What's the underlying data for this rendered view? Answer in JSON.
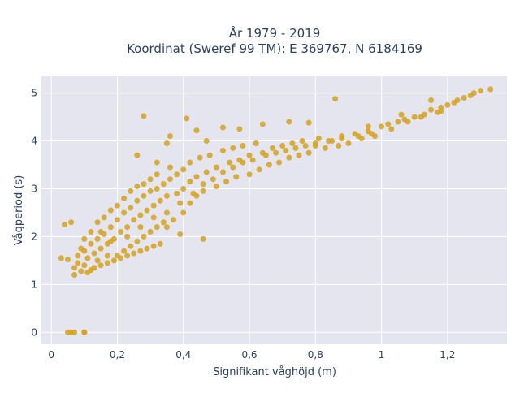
{
  "chart_data": {
    "type": "scatter",
    "title_line1": "År 1979 - 2019",
    "title_line2": "Koordinat (Sweref 99 TM): E 369767, N 6184169",
    "xlabel": "Signifikant våghöjd (m)",
    "ylabel": "Vågperiod (s)",
    "xlim": [
      -0.03,
      1.38
    ],
    "ylim": [
      -0.25,
      5.35
    ],
    "x_ticks": [
      {
        "value": 0,
        "label": "0"
      },
      {
        "value": 0.2,
        "label": "0,2"
      },
      {
        "value": 0.4,
        "label": "0,4"
      },
      {
        "value": 0.6,
        "label": "0,6"
      },
      {
        "value": 0.8,
        "label": "0,8"
      },
      {
        "value": 1.0,
        "label": "1"
      },
      {
        "value": 1.2,
        "label": "1,2"
      }
    ],
    "y_ticks": [
      {
        "value": 0,
        "label": "0"
      },
      {
        "value": 1,
        "label": "1"
      },
      {
        "value": 2,
        "label": "2"
      },
      {
        "value": 3,
        "label": "3"
      },
      {
        "value": 4,
        "label": "4"
      },
      {
        "value": 5,
        "label": "5"
      }
    ],
    "grid": true,
    "marker_color": "#d4a21f",
    "plot_bg_color": "#e5e5ef",
    "points": [
      [
        0.05,
        0.0
      ],
      [
        0.06,
        0.0
      ],
      [
        0.07,
        0.0
      ],
      [
        0.1,
        0.0
      ],
      [
        0.1,
        0.0
      ],
      [
        0.04,
        2.25
      ],
      [
        0.06,
        2.3
      ],
      [
        0.05,
        1.52
      ],
      [
        0.03,
        1.55
      ],
      [
        0.07,
        1.2
      ],
      [
        0.07,
        1.35
      ],
      [
        0.08,
        1.45
      ],
      [
        0.08,
        1.6
      ],
      [
        0.09,
        1.28
      ],
      [
        0.09,
        1.75
      ],
      [
        0.1,
        1.4
      ],
      [
        0.1,
        1.95
      ],
      [
        0.11,
        1.25
      ],
      [
        0.11,
        1.55
      ],
      [
        0.12,
        1.85
      ],
      [
        0.12,
        2.1
      ],
      [
        0.13,
        1.35
      ],
      [
        0.13,
        1.65
      ],
      [
        0.14,
        1.95
      ],
      [
        0.14,
        2.3
      ],
      [
        0.15,
        1.4
      ],
      [
        0.15,
        1.75
      ],
      [
        0.16,
        2.05
      ],
      [
        0.16,
        2.4
      ],
      [
        0.17,
        1.45
      ],
      [
        0.17,
        1.85
      ],
      [
        0.18,
        2.2
      ],
      [
        0.18,
        2.55
      ],
      [
        0.19,
        1.5
      ],
      [
        0.19,
        1.95
      ],
      [
        0.2,
        2.35
      ],
      [
        0.2,
        2.65
      ],
      [
        0.21,
        1.55
      ],
      [
        0.21,
        2.1
      ],
      [
        0.22,
        2.5
      ],
      [
        0.22,
        2.8
      ],
      [
        0.23,
        1.6
      ],
      [
        0.23,
        2.2
      ],
      [
        0.24,
        2.6
      ],
      [
        0.24,
        2.95
      ],
      [
        0.25,
        1.65
      ],
      [
        0.25,
        2.35
      ],
      [
        0.26,
        2.75
      ],
      [
        0.26,
        3.05
      ],
      [
        0.27,
        1.7
      ],
      [
        0.27,
        2.45
      ],
      [
        0.28,
        2.85
      ],
      [
        0.28,
        3.1
      ],
      [
        0.29,
        1.75
      ],
      [
        0.29,
        2.55
      ],
      [
        0.3,
        2.95
      ],
      [
        0.3,
        3.2
      ],
      [
        0.31,
        1.8
      ],
      [
        0.31,
        2.65
      ],
      [
        0.32,
        3.0
      ],
      [
        0.32,
        3.3
      ],
      [
        0.33,
        1.85
      ],
      [
        0.33,
        2.75
      ],
      [
        0.34,
        3.1
      ],
      [
        0.35,
        2.2
      ],
      [
        0.35,
        2.85
      ],
      [
        0.36,
        3.2
      ],
      [
        0.36,
        3.45
      ],
      [
        0.37,
        2.35
      ],
      [
        0.38,
        2.9
      ],
      [
        0.38,
        3.3
      ],
      [
        0.4,
        2.5
      ],
      [
        0.4,
        3.0
      ],
      [
        0.4,
        3.4
      ],
      [
        0.42,
        2.7
      ],
      [
        0.42,
        3.15
      ],
      [
        0.42,
        3.55
      ],
      [
        0.44,
        2.85
      ],
      [
        0.44,
        3.25
      ],
      [
        0.45,
        3.65
      ],
      [
        0.46,
        2.95
      ],
      [
        0.47,
        3.35
      ],
      [
        0.48,
        3.7
      ],
      [
        0.5,
        3.05
      ],
      [
        0.5,
        3.45
      ],
      [
        0.52,
        3.8
      ],
      [
        0.53,
        3.15
      ],
      [
        0.54,
        3.55
      ],
      [
        0.55,
        3.85
      ],
      [
        0.56,
        3.25
      ],
      [
        0.57,
        3.6
      ],
      [
        0.58,
        3.9
      ],
      [
        0.6,
        3.3
      ],
      [
        0.6,
        3.7
      ],
      [
        0.62,
        3.95
      ],
      [
        0.63,
        3.4
      ],
      [
        0.64,
        3.75
      ],
      [
        0.66,
        3.5
      ],
      [
        0.67,
        3.85
      ],
      [
        0.69,
        3.55
      ],
      [
        0.7,
        3.9
      ],
      [
        0.72,
        3.65
      ],
      [
        0.73,
        3.95
      ],
      [
        0.75,
        3.7
      ],
      [
        0.76,
        4.0
      ],
      [
        0.78,
        3.75
      ],
      [
        0.8,
        3.9
      ],
      [
        0.81,
        4.05
      ],
      [
        0.83,
        3.85
      ],
      [
        0.85,
        4.0
      ],
      [
        0.87,
        3.9
      ],
      [
        0.88,
        4.1
      ],
      [
        0.9,
        3.95
      ],
      [
        0.92,
        4.15
      ],
      [
        0.94,
        4.05
      ],
      [
        0.96,
        4.2
      ],
      [
        0.98,
        4.1
      ],
      [
        1.0,
        4.3
      ],
      [
        1.03,
        4.25
      ],
      [
        1.05,
        4.4
      ],
      [
        1.08,
        4.4
      ],
      [
        1.1,
        4.5
      ],
      [
        1.13,
        4.55
      ],
      [
        1.15,
        4.65
      ],
      [
        1.18,
        4.7
      ],
      [
        1.2,
        4.75
      ],
      [
        1.23,
        4.85
      ],
      [
        1.25,
        4.9
      ],
      [
        1.28,
        5.0
      ],
      [
        1.3,
        5.05
      ],
      [
        1.33,
        5.08
      ],
      [
        0.1,
        1.7
      ],
      [
        0.12,
        1.3
      ],
      [
        0.14,
        1.5
      ],
      [
        0.15,
        2.1
      ],
      [
        0.17,
        1.6
      ],
      [
        0.18,
        1.9
      ],
      [
        0.2,
        1.6
      ],
      [
        0.22,
        1.7
      ],
      [
        0.24,
        1.8
      ],
      [
        0.26,
        1.9
      ],
      [
        0.28,
        2.0
      ],
      [
        0.3,
        2.1
      ],
      [
        0.32,
        2.2
      ],
      [
        0.34,
        2.3
      ],
      [
        0.23,
        2.0
      ],
      [
        0.27,
        2.2
      ],
      [
        0.31,
        2.4
      ],
      [
        0.35,
        2.5
      ],
      [
        0.39,
        2.7
      ],
      [
        0.43,
        2.9
      ],
      [
        0.46,
        3.1
      ],
      [
        0.49,
        3.2
      ],
      [
        0.52,
        3.35
      ],
      [
        0.55,
        3.45
      ],
      [
        0.58,
        3.55
      ],
      [
        0.61,
        3.6
      ],
      [
        0.65,
        3.7
      ],
      [
        0.68,
        3.75
      ],
      [
        0.71,
        3.8
      ],
      [
        0.74,
        3.85
      ],
      [
        0.77,
        3.9
      ],
      [
        0.8,
        3.95
      ],
      [
        0.84,
        4.0
      ],
      [
        0.88,
        4.05
      ],
      [
        0.93,
        4.1
      ],
      [
        0.97,
        4.15
      ],
      [
        1.02,
        4.35
      ],
      [
        1.07,
        4.45
      ],
      [
        1.12,
        4.5
      ],
      [
        1.17,
        4.6
      ],
      [
        1.22,
        4.8
      ],
      [
        1.27,
        4.95
      ],
      [
        0.28,
        4.52
      ],
      [
        0.36,
        4.1
      ],
      [
        0.41,
        4.47
      ],
      [
        0.44,
        4.22
      ],
      [
        0.47,
        4.0
      ],
      [
        0.52,
        4.28
      ],
      [
        0.57,
        4.25
      ],
      [
        0.64,
        4.35
      ],
      [
        0.72,
        4.4
      ],
      [
        0.78,
        4.38
      ],
      [
        0.86,
        4.88
      ],
      [
        0.96,
        4.3
      ],
      [
        1.06,
        4.55
      ],
      [
        1.15,
        4.85
      ],
      [
        1.18,
        4.62
      ],
      [
        0.35,
        3.95
      ],
      [
        0.46,
        1.95
      ],
      [
        0.39,
        2.05
      ],
      [
        0.26,
        3.7
      ],
      [
        0.32,
        3.55
      ]
    ]
  }
}
